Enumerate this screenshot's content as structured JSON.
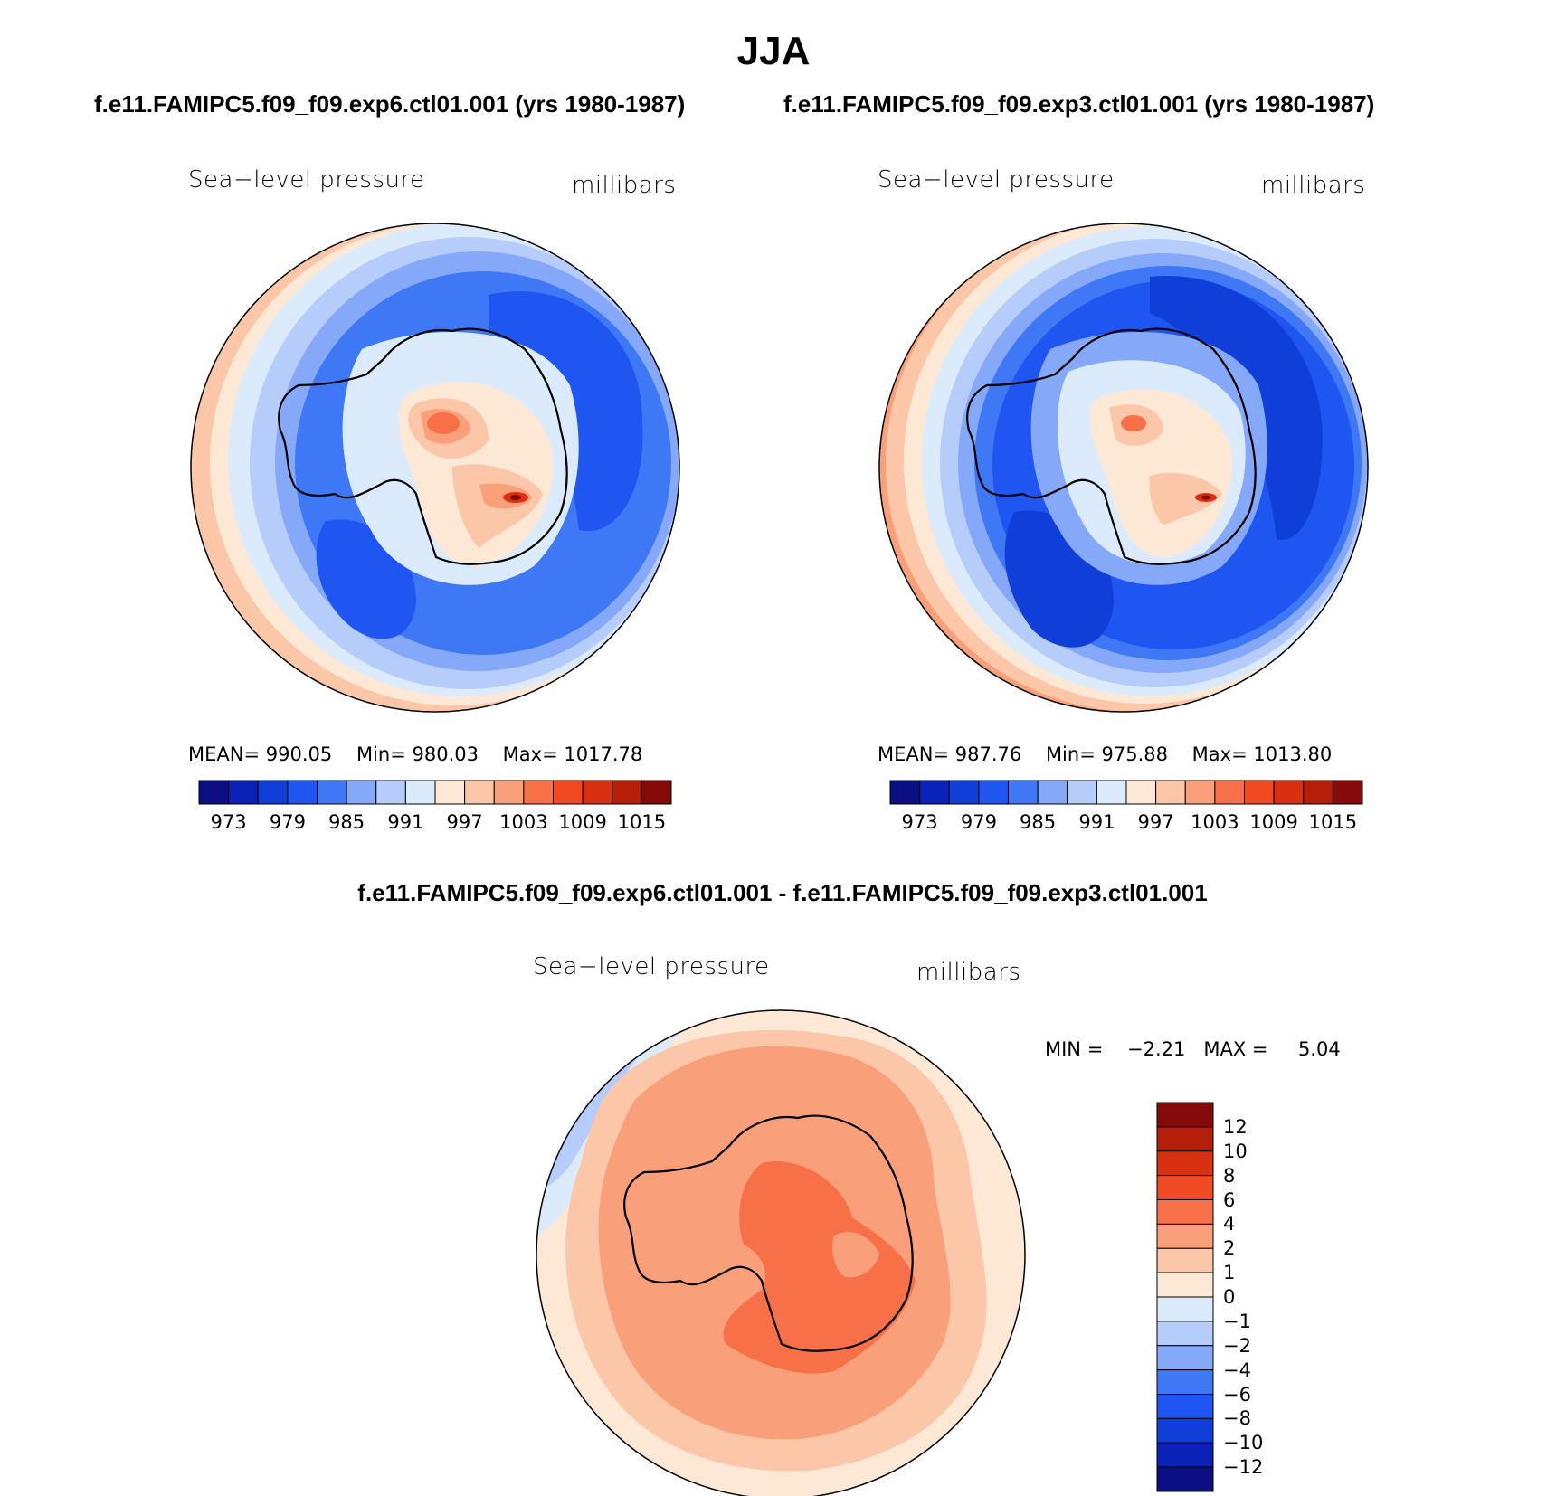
{
  "title": "JJA",
  "panels": [
    {
      "subtitle": "f.e11.FAMIPC5.f09_f09.exp6.ctl01.001 (yrs 1980-1987)",
      "variable": "Sea−level pressure",
      "units": "millibars",
      "mean_label": "MEAN=",
      "mean": "990.05",
      "min_label": "Min=",
      "min": "980.03",
      "max_label": "Max=",
      "max": "1017.78",
      "ticks": [
        "973",
        "979",
        "985",
        "991",
        "997",
        "1003",
        "1009",
        "1015"
      ]
    },
    {
      "subtitle": "f.e11.FAMIPC5.f09_f09.exp3.ctl01.001 (yrs 1980-1987)",
      "variable": "Sea−level pressure",
      "units": "millibars",
      "mean_label": "MEAN=",
      "mean": "987.76",
      "min_label": "Min=",
      "min": "975.88",
      "max_label": "Max=",
      "max": "1013.80",
      "ticks": [
        "973",
        "979",
        "985",
        "991",
        "997",
        "1003",
        "1009",
        "1015"
      ]
    }
  ],
  "difference": {
    "title": "f.e11.FAMIPC5.f09_f09.exp6.ctl01.001 - f.e11.FAMIPC5.f09_f09.exp3.ctl01.001",
    "variable": "Sea−level pressure",
    "units": "millibars",
    "min_label": "MIN =",
    "min": "−2.21",
    "max_label": "MAX =",
    "max": "5.04",
    "ticks": [
      "12",
      "10",
      "8",
      "6",
      "4",
      "2",
      "1",
      "0",
      "−1",
      "−2",
      "−4",
      "−6",
      "−8",
      "−10",
      "−12"
    ]
  },
  "colors": {
    "full_scale": [
      "#0b0f84",
      "#0a22b8",
      "#0f3fd8",
      "#1f55f0",
      "#3f78f4",
      "#86a8f8",
      "#b6ccfb",
      "#dcebfc",
      "#fde8d6",
      "#fcc6a8",
      "#f9a07a",
      "#f87048",
      "#f04a22",
      "#d83010",
      "#b51f0a",
      "#850a0a"
    ],
    "diff_scale": [
      "#850a0a",
      "#b51f0a",
      "#d83010",
      "#f04a22",
      "#f87048",
      "#f9a07a",
      "#fcc6a8",
      "#fde8d6",
      "#dcebfc",
      "#b6ccfb",
      "#86a8f8",
      "#3f78f4",
      "#1f55f0",
      "#0f3fd8",
      "#0a22b8",
      "#0b0f84"
    ]
  },
  "chart_data": [
    {
      "type": "map-contour",
      "title": "Sea−level pressure",
      "units": "millibars",
      "projection": "south-polar stereographic",
      "mean": 990.05,
      "min": 980.03,
      "max": 1017.78,
      "contour_levels": [
        973,
        976,
        979,
        982,
        985,
        988,
        991,
        994,
        997,
        1000,
        1003,
        1006,
        1009,
        1012,
        1015
      ]
    },
    {
      "type": "map-contour",
      "title": "Sea−level pressure",
      "units": "millibars",
      "projection": "south-polar stereographic",
      "mean": 987.76,
      "min": 975.88,
      "max": 1013.8,
      "contour_levels": [
        973,
        976,
        979,
        982,
        985,
        988,
        991,
        994,
        997,
        1000,
        1003,
        1006,
        1009,
        1012,
        1015
      ]
    },
    {
      "type": "map-contour",
      "title": "Sea−level pressure difference",
      "units": "millibars",
      "projection": "south-polar stereographic",
      "min": -2.21,
      "max": 5.04,
      "contour_levels": [
        -12,
        -10,
        -8,
        -6,
        -4,
        -2,
        -1,
        0,
        1,
        2,
        4,
        6,
        8,
        10,
        12
      ]
    }
  ]
}
